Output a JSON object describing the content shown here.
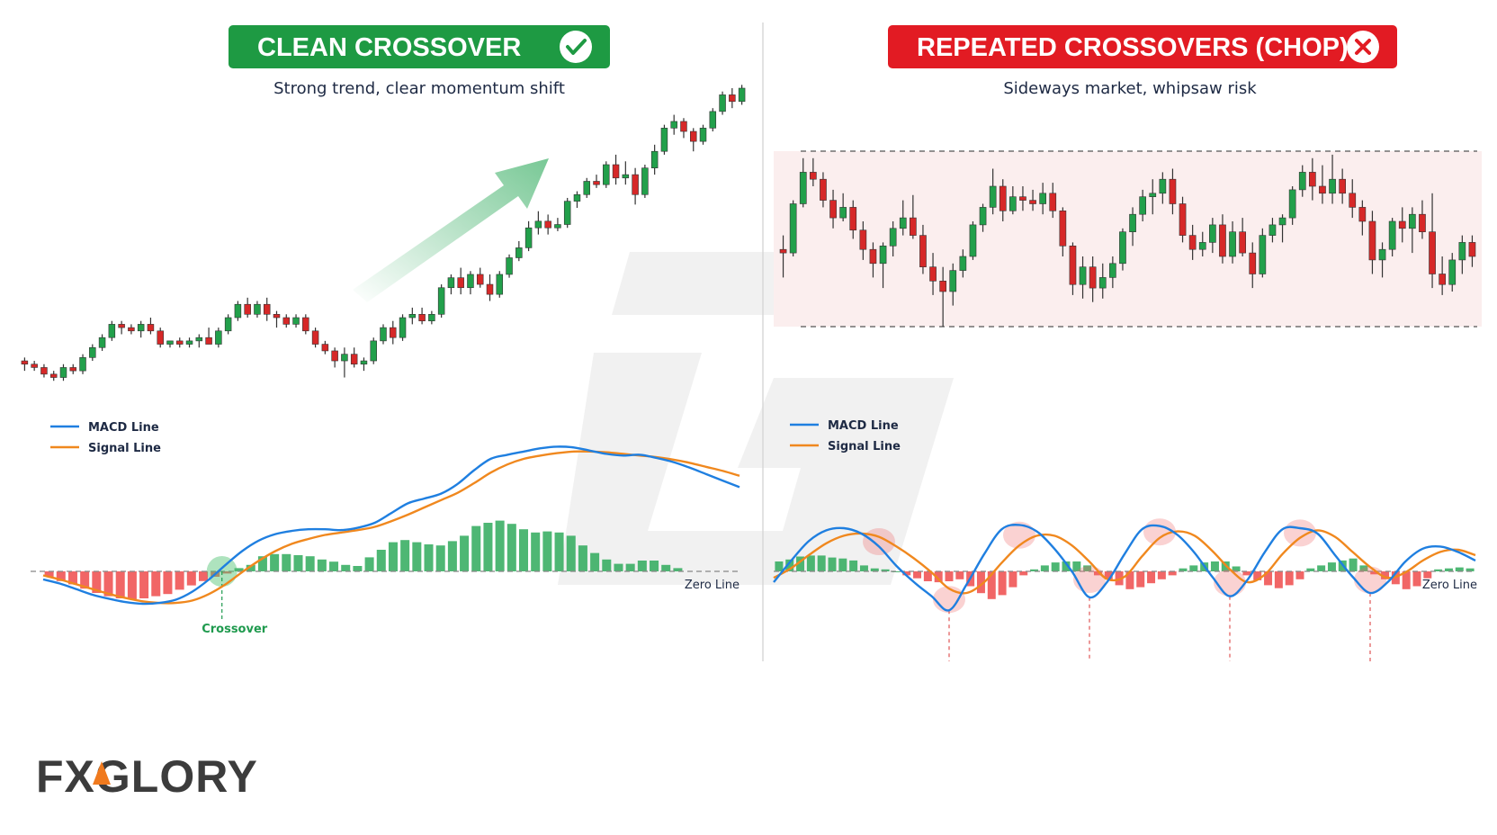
{
  "colors": {
    "bull": "#22a04b",
    "bear": "#d62828",
    "macd": "#1f7fe0",
    "signal": "#f0881e",
    "hist_pos": "#2faa5c",
    "hist_neg": "#ef4b4b",
    "badge_green": "#1e9a43",
    "badge_red": "#e21b23",
    "range_fill": "#fbeeee",
    "logo_accent": "#f07a1e"
  },
  "logo": {
    "text": "FXGLORY"
  },
  "chart_data": [
    {
      "id": "clean",
      "type": "candlestick+macd",
      "title": "CLEAN CROSSOVER",
      "title_icon": "check-icon",
      "subtitle": "Strong trend, clear momentum shift",
      "legend": [
        "MACD Line",
        "Signal Line"
      ],
      "zero_label": "Zero Line",
      "crossover_label": "Crossover",
      "annotation_icon": "trend-arrow-icon",
      "price_scale": [
        0,
        100
      ],
      "candles": [
        [
          30,
          31,
          27,
          29
        ],
        [
          29,
          30,
          27,
          28
        ],
        [
          28,
          29,
          25,
          26
        ],
        [
          26,
          27,
          24,
          25
        ],
        [
          25,
          29,
          24,
          28
        ],
        [
          28,
          29,
          26,
          27
        ],
        [
          27,
          32,
          26,
          31
        ],
        [
          31,
          35,
          30,
          34
        ],
        [
          34,
          38,
          33,
          37
        ],
        [
          37,
          42,
          36,
          41
        ],
        [
          41,
          42,
          38,
          40
        ],
        [
          40,
          41,
          38,
          39
        ],
        [
          39,
          42,
          37,
          41
        ],
        [
          41,
          43,
          38,
          39
        ],
        [
          39,
          40,
          34,
          35
        ],
        [
          35,
          36,
          34,
          36
        ],
        [
          36,
          37,
          34,
          35
        ],
        [
          35,
          37,
          34,
          36
        ],
        [
          36,
          38,
          34,
          37
        ],
        [
          37,
          40,
          35,
          35
        ],
        [
          35,
          40,
          34,
          39
        ],
        [
          39,
          44,
          38,
          43
        ],
        [
          43,
          48,
          42,
          47
        ],
        [
          47,
          49,
          43,
          44
        ],
        [
          44,
          48,
          43,
          47
        ],
        [
          47,
          49,
          42,
          44
        ],
        [
          44,
          45,
          40,
          43
        ],
        [
          43,
          44,
          40,
          41
        ],
        [
          41,
          44,
          40,
          43
        ],
        [
          43,
          44,
          38,
          39
        ],
        [
          39,
          40,
          34,
          35
        ],
        [
          35,
          36,
          32,
          33
        ],
        [
          33,
          34,
          28,
          30
        ],
        [
          30,
          34,
          25,
          32
        ],
        [
          32,
          34,
          28,
          29
        ],
        [
          29,
          31,
          27,
          30
        ],
        [
          30,
          37,
          29,
          36
        ],
        [
          36,
          41,
          35,
          40
        ],
        [
          40,
          42,
          35,
          37
        ],
        [
          37,
          44,
          36,
          43
        ],
        [
          43,
          46,
          41,
          44
        ],
        [
          44,
          46,
          41,
          42
        ],
        [
          42,
          45,
          41,
          44
        ],
        [
          44,
          53,
          43,
          52
        ],
        [
          52,
          56,
          50,
          55
        ],
        [
          55,
          58,
          50,
          52
        ],
        [
          52,
          57,
          50,
          56
        ],
        [
          56,
          58,
          52,
          53
        ],
        [
          53,
          56,
          48,
          50
        ],
        [
          50,
          57,
          49,
          56
        ],
        [
          56,
          62,
          55,
          61
        ],
        [
          61,
          66,
          60,
          64
        ],
        [
          64,
          72,
          63,
          70
        ],
        [
          70,
          75,
          68,
          72
        ],
        [
          72,
          74,
          68,
          70
        ],
        [
          70,
          73,
          69,
          71
        ],
        [
          71,
          79,
          70,
          78
        ],
        [
          78,
          81,
          76,
          80
        ],
        [
          80,
          85,
          79,
          84
        ],
        [
          84,
          86,
          82,
          83
        ],
        [
          83,
          90,
          82,
          89
        ],
        [
          89,
          92,
          83,
          85
        ],
        [
          85,
          90,
          83,
          86
        ],
        [
          86,
          88,
          77,
          80
        ],
        [
          80,
          89,
          79,
          88
        ],
        [
          88,
          95,
          86,
          93
        ],
        [
          93,
          101,
          92,
          100
        ],
        [
          100,
          104,
          98,
          102
        ],
        [
          102,
          103,
          97,
          99
        ],
        [
          99,
          100,
          93,
          96
        ],
        [
          96,
          101,
          95,
          100
        ],
        [
          100,
          106,
          99,
          105
        ],
        [
          105,
          111,
          104,
          110
        ],
        [
          110,
          112,
          106,
          108
        ],
        [
          108,
          113,
          107,
          112
        ]
      ],
      "macd": [
        -1.0,
        -1.5,
        -2.2,
        -2.9,
        -3.4,
        -3.8,
        -4.0,
        -3.9,
        -3.5,
        -2.5,
        -1.0,
        0.8,
        2.5,
        3.8,
        4.6,
        5.0,
        5.2,
        5.2,
        5.1,
        5.4,
        6.0,
        7.2,
        8.4,
        9.0,
        9.6,
        10.8,
        12.5,
        13.9,
        14.4,
        14.8,
        15.2,
        15.4,
        15.3,
        14.9,
        14.5,
        14.3,
        14.4,
        14.0,
        13.5,
        12.8,
        12.0,
        11.2,
        10.4
      ],
      "signal": [
        -0.5,
        -1.0,
        -1.6,
        -2.2,
        -2.8,
        -3.3,
        -3.7,
        -3.9,
        -3.9,
        -3.6,
        -2.8,
        -1.6,
        -0.1,
        1.3,
        2.5,
        3.4,
        4.0,
        4.5,
        4.8,
        5.1,
        5.5,
        6.2,
        7.0,
        7.9,
        8.8,
        9.7,
        10.9,
        12.2,
        13.2,
        13.9,
        14.3,
        14.6,
        14.8,
        14.8,
        14.7,
        14.5,
        14.3,
        14.1,
        13.8,
        13.4,
        12.9,
        12.4,
        11.8
      ],
      "histogram": [
        -0.5,
        -0.9,
        -1.2,
        -1.6,
        -2.0,
        -2.3,
        -2.5,
        -2.6,
        -2.5,
        -2.3,
        -2.1,
        -1.7,
        -1.3,
        -0.9,
        -0.5,
        -0.2,
        0.3,
        0.6,
        1.4,
        1.6,
        1.6,
        1.5,
        1.4,
        1.1,
        0.9,
        0.6,
        0.5,
        1.3,
        2.0,
        2.7,
        2.9,
        2.7,
        2.5,
        2.4,
        2.8,
        3.3,
        4.2,
        4.5,
        4.7,
        4.4,
        3.9,
        3.6,
        3.7,
        3.6,
        3.3,
        2.4,
        1.7,
        1.1,
        0.7,
        0.7,
        1.0,
        1.0,
        0.6,
        0.3
      ],
      "crossover_index": 11
    },
    {
      "id": "chop",
      "type": "candlestick+macd",
      "title": "REPEATED CROSSOVERS (CHOP)",
      "title_icon": "x-icon",
      "subtitle": "Sideways market, whipsaw risk",
      "legend": [
        "MACD Line",
        "Signal Line"
      ],
      "zero_label": "Zero Line",
      "range_band": {
        "high": 100,
        "low": 0
      },
      "price_scale": [
        0,
        100
      ],
      "candles": [
        [
          44,
          52,
          28,
          42
        ],
        [
          42,
          72,
          40,
          70
        ],
        [
          70,
          96,
          68,
          88
        ],
        [
          88,
          96,
          80,
          84
        ],
        [
          84,
          88,
          68,
          72
        ],
        [
          72,
          78,
          56,
          62
        ],
        [
          62,
          76,
          60,
          68
        ],
        [
          68,
          72,
          50,
          55
        ],
        [
          55,
          60,
          38,
          44
        ],
        [
          44,
          48,
          28,
          36
        ],
        [
          36,
          48,
          22,
          46
        ],
        [
          46,
          60,
          40,
          56
        ],
        [
          56,
          72,
          52,
          62
        ],
        [
          62,
          75,
          50,
          52
        ],
        [
          52,
          58,
          30,
          34
        ],
        [
          34,
          42,
          18,
          26
        ],
        [
          26,
          34,
          0,
          20
        ],
        [
          20,
          36,
          12,
          32
        ],
        [
          32,
          44,
          28,
          40
        ],
        [
          40,
          60,
          38,
          58
        ],
        [
          58,
          70,
          54,
          68
        ],
        [
          68,
          90,
          64,
          80
        ],
        [
          80,
          84,
          60,
          66
        ],
        [
          66,
          80,
          64,
          74
        ],
        [
          74,
          80,
          66,
          72
        ],
        [
          72,
          78,
          66,
          70
        ],
        [
          70,
          82,
          64,
          76
        ],
        [
          76,
          82,
          62,
          66
        ],
        [
          66,
          68,
          40,
          46
        ],
        [
          46,
          48,
          18,
          24
        ],
        [
          24,
          40,
          16,
          34
        ],
        [
          34,
          40,
          14,
          22
        ],
        [
          22,
          36,
          16,
          28
        ],
        [
          28,
          40,
          22,
          36
        ],
        [
          36,
          56,
          32,
          54
        ],
        [
          54,
          68,
          46,
          64
        ],
        [
          64,
          78,
          60,
          74
        ],
        [
          74,
          84,
          64,
          76
        ],
        [
          76,
          88,
          70,
          84
        ],
        [
          84,
          90,
          64,
          70
        ],
        [
          70,
          74,
          48,
          52
        ],
        [
          52,
          58,
          38,
          44
        ],
        [
          44,
          54,
          40,
          48
        ],
        [
          48,
          62,
          42,
          58
        ],
        [
          58,
          64,
          36,
          40
        ],
        [
          40,
          60,
          36,
          54
        ],
        [
          54,
          62,
          40,
          42
        ],
        [
          42,
          48,
          22,
          30
        ],
        [
          30,
          56,
          28,
          52
        ],
        [
          52,
          62,
          48,
          58
        ],
        [
          58,
          64,
          48,
          62
        ],
        [
          62,
          80,
          58,
          78
        ],
        [
          78,
          92,
          74,
          88
        ],
        [
          88,
          96,
          72,
          80
        ],
        [
          80,
          92,
          70,
          76
        ],
        [
          76,
          98,
          70,
          84
        ],
        [
          84,
          90,
          70,
          76
        ],
        [
          76,
          84,
          62,
          68
        ],
        [
          68,
          72,
          52,
          60
        ],
        [
          60,
          66,
          30,
          38
        ],
        [
          38,
          48,
          28,
          44
        ],
        [
          44,
          62,
          40,
          60
        ],
        [
          60,
          68,
          48,
          56
        ],
        [
          56,
          68,
          42,
          64
        ],
        [
          64,
          72,
          50,
          54
        ],
        [
          54,
          76,
          22,
          30
        ],
        [
          30,
          40,
          18,
          24
        ],
        [
          24,
          42,
          20,
          38
        ],
        [
          38,
          52,
          30,
          48
        ],
        [
          48,
          52,
          34,
          40
        ]
      ],
      "macd": [
        -1.0,
        1.0,
        2.8,
        3.8,
        4.0,
        3.5,
        2.3,
        0.5,
        -1.0,
        -2.3,
        -3.6,
        -1.2,
        1.6,
        3.9,
        4.3,
        3.7,
        2.1,
        0.0,
        -2.4,
        -1.0,
        1.6,
        3.9,
        4.2,
        3.4,
        1.7,
        -0.5,
        -2.3,
        -0.8,
        1.8,
        3.9,
        4.0,
        3.5,
        1.5,
        -0.5,
        -2.0,
        -1.0,
        0.9,
        2.1,
        2.3,
        1.8,
        1.0
      ],
      "signal": [
        -0.6,
        0.3,
        1.5,
        2.6,
        3.3,
        3.5,
        3.2,
        2.3,
        1.2,
        -0.1,
        -1.6,
        -2.0,
        -1.0,
        0.8,
        2.4,
        3.3,
        3.3,
        2.4,
        0.9,
        -0.7,
        -0.5,
        1.4,
        3.1,
        3.7,
        3.3,
        1.9,
        0.2,
        -1.0,
        -0.3,
        1.6,
        3.1,
        3.8,
        3.2,
        1.8,
        0.4,
        -0.6,
        -0.1,
        1.0,
        1.8,
        2.0,
        1.5
      ],
      "histogram": [
        1.0,
        1.2,
        1.5,
        1.6,
        1.6,
        1.4,
        1.3,
        1.1,
        0.6,
        0.3,
        0.2,
        0.0,
        -0.4,
        -0.7,
        -1.0,
        -1.1,
        -1.0,
        -0.8,
        -1.5,
        -2.2,
        -2.8,
        -2.4,
        -1.6,
        -0.4,
        0.2,
        0.6,
        0.9,
        1.0,
        1.0,
        0.6,
        -0.4,
        -0.8,
        -1.4,
        -1.8,
        -1.6,
        -1.2,
        -0.8,
        -0.4,
        0.3,
        0.6,
        0.9,
        1.0,
        1.0,
        0.5,
        -0.4,
        -0.9,
        -1.4,
        -1.7,
        -1.4,
        -0.8,
        0.3,
        0.6,
        0.9,
        1.1,
        1.3,
        0.6,
        -0.3,
        -0.8,
        -1.3,
        -1.8,
        -1.5,
        -0.7,
        0.2,
        0.3,
        0.4,
        0.3
      ],
      "crossover_markers": [
        6,
        10,
        14,
        18,
        22,
        26,
        30,
        34
      ],
      "dip_markers": [
        10,
        18,
        26,
        34
      ]
    }
  ]
}
